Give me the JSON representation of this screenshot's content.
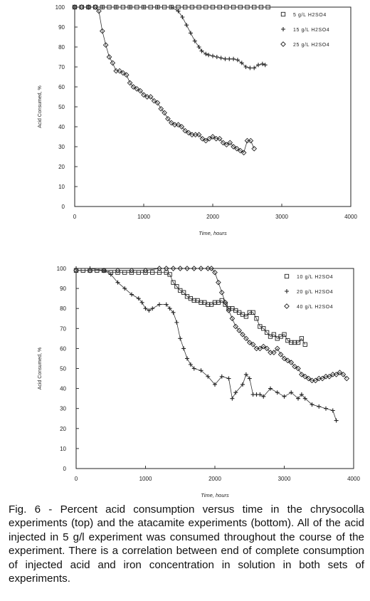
{
  "chart_data": [
    {
      "type": "scatter",
      "xlabel": "Time, hours",
      "ylabel": "Acid Consumed, %",
      "xlim": [
        0,
        4000
      ],
      "ylim": [
        0,
        100
      ],
      "x_ticks": [
        "0",
        "1000",
        "2000",
        "3000",
        "4000"
      ],
      "y_ticks": [
        "0",
        "10",
        "20",
        "30",
        "40",
        "50",
        "60",
        "70",
        "80",
        "90",
        "100"
      ],
      "legend_position": "top-right",
      "grid": false,
      "series": [
        {
          "name": "5 g/L H2SO4",
          "marker": "square",
          "x": [
            0,
            100,
            200,
            300,
            400,
            500,
            600,
            700,
            800,
            900,
            1000,
            1100,
            1200,
            1300,
            1400,
            1500,
            1600,
            1700,
            1800,
            1900,
            2000,
            2100,
            2200,
            2300,
            2400,
            2500,
            2600,
            2700,
            2800
          ],
          "y": [
            100,
            100,
            100,
            100,
            100,
            100,
            100,
            100,
            100,
            100,
            100,
            100,
            100,
            100,
            100,
            100,
            100,
            100,
            100,
            100,
            100,
            100,
            100,
            100,
            100,
            100,
            100,
            100,
            100
          ]
        },
        {
          "name": "15 g/L H2SO4",
          "marker": "plus",
          "x": [
            0,
            200,
            400,
            600,
            800,
            1000,
            1200,
            1400,
            1500,
            1560,
            1620,
            1680,
            1740,
            1800,
            1840,
            1900,
            1940,
            2000,
            2060,
            2120,
            2180,
            2240,
            2300,
            2360,
            2420,
            2480,
            2540,
            2600,
            2660,
            2720,
            2760
          ],
          "y": [
            100,
            100,
            100,
            100,
            100,
            100,
            100,
            100,
            98,
            95,
            91,
            87,
            83,
            80,
            78,
            76.5,
            76,
            75.5,
            75,
            74.5,
            74,
            74,
            74,
            73.5,
            72,
            70,
            69.5,
            69.5,
            71,
            71.5,
            71
          ]
        },
        {
          "name": "25 g/L H2SO4",
          "marker": "diamond",
          "x": [
            0,
            100,
            200,
            300,
            350,
            400,
            450,
            500,
            550,
            600,
            650,
            700,
            750,
            800,
            850,
            900,
            950,
            1000,
            1050,
            1100,
            1150,
            1200,
            1250,
            1300,
            1350,
            1400,
            1450,
            1500,
            1550,
            1600,
            1650,
            1700,
            1750,
            1800,
            1850,
            1900,
            1950,
            2000,
            2050,
            2100,
            2150,
            2200,
            2250,
            2300,
            2350,
            2400,
            2450,
            2500,
            2550,
            2600
          ],
          "y": [
            100,
            100,
            100,
            100,
            98,
            88,
            81,
            75,
            72,
            68,
            68,
            67,
            66,
            62,
            60,
            59,
            58,
            56,
            55,
            55,
            53,
            52,
            49,
            47,
            44,
            42,
            41,
            41,
            40,
            38,
            37,
            36,
            36,
            36,
            34,
            33,
            34,
            35,
            34,
            34,
            32,
            31,
            32,
            30,
            29,
            28,
            27,
            33,
            33,
            29
          ]
        }
      ]
    },
    {
      "type": "scatter",
      "xlabel": "Time, hours",
      "ylabel": "Acid Consumed, %",
      "xlim": [
        0,
        4000
      ],
      "ylim": [
        0,
        100
      ],
      "x_ticks": [
        "0",
        "1000",
        "2000",
        "3000",
        "4000"
      ],
      "y_ticks": [
        "0",
        "10",
        "20",
        "30",
        "40",
        "50",
        "60",
        "70",
        "80",
        "90",
        "100"
      ],
      "legend_position": "top-right",
      "grid": false,
      "series": [
        {
          "name": "10 g/L H2SO4",
          "marker": "square",
          "x": [
            0,
            100,
            200,
            300,
            400,
            500,
            600,
            700,
            800,
            900,
            1000,
            1100,
            1200,
            1300,
            1350,
            1400,
            1450,
            1500,
            1550,
            1600,
            1650,
            1700,
            1750,
            1800,
            1850,
            1900,
            1950,
            2000,
            2050,
            2100,
            2150,
            2200,
            2250,
            2300,
            2350,
            2400,
            2450,
            2500,
            2550,
            2600,
            2650,
            2700,
            2750,
            2800,
            2850,
            2900,
            2950,
            3000,
            3050,
            3100,
            3150,
            3200,
            3250,
            3300
          ],
          "y": [
            99,
            99,
            99,
            99,
            99,
            98,
            98,
            98,
            98,
            98,
            98,
            98,
            98,
            98,
            97,
            93,
            91,
            89,
            88,
            86,
            85,
            84,
            84,
            83,
            83,
            82,
            82,
            83,
            83,
            84,
            82,
            80,
            80,
            79,
            78,
            77,
            76,
            78,
            78,
            75,
            71,
            70,
            68,
            66,
            67,
            65,
            66,
            67,
            64,
            63,
            63,
            63,
            65,
            62
          ]
        },
        {
          "name": "20 g/L H2SO4",
          "marker": "plus",
          "x": [
            0,
            200,
            400,
            500,
            600,
            700,
            800,
            900,
            950,
            1000,
            1050,
            1100,
            1200,
            1300,
            1350,
            1400,
            1450,
            1500,
            1550,
            1600,
            1650,
            1700,
            1800,
            1900,
            2000,
            2100,
            2200,
            2250,
            2300,
            2400,
            2450,
            2500,
            2550,
            2600,
            2650,
            2700,
            2800,
            2900,
            3000,
            3100,
            3200,
            3250,
            3300,
            3400,
            3500,
            3600,
            3700,
            3750
          ],
          "y": [
            100,
            100,
            99,
            97,
            93,
            90,
            87,
            85,
            83,
            80,
            79,
            80,
            82,
            82,
            80,
            78,
            73,
            65,
            60,
            55,
            52,
            50,
            49,
            46,
            42,
            46,
            45,
            35,
            38,
            42,
            47,
            45,
            37,
            37,
            37,
            36,
            40,
            38,
            36,
            38,
            35,
            37,
            35,
            32,
            31,
            30,
            29,
            24
          ]
        },
        {
          "name": "40 g/L H2SO4",
          "marker": "diamond",
          "x": [
            0,
            200,
            400,
            600,
            800,
            1000,
            1200,
            1300,
            1400,
            1500,
            1600,
            1700,
            1800,
            1900,
            1950,
            2000,
            2050,
            2100,
            2150,
            2200,
            2250,
            2300,
            2350,
            2400,
            2450,
            2500,
            2550,
            2600,
            2650,
            2700,
            2750,
            2800,
            2850,
            2900,
            2950,
            3000,
            3050,
            3100,
            3150,
            3200,
            3250,
            3300,
            3350,
            3400,
            3450,
            3500,
            3550,
            3600,
            3650,
            3700,
            3750,
            3800,
            3850,
            3900
          ],
          "y": [
            99,
            99,
            99,
            99,
            99,
            99,
            100,
            100,
            100,
            100,
            100,
            100,
            100,
            100,
            100,
            98,
            93,
            88,
            83,
            79,
            75,
            71,
            69,
            67,
            65,
            63,
            62,
            60,
            60,
            61,
            60,
            58,
            58,
            60,
            57,
            55,
            54,
            53,
            51,
            50,
            47,
            46,
            45,
            44,
            44,
            45,
            45,
            46,
            46,
            47,
            47,
            48,
            47,
            45
          ]
        }
      ]
    }
  ],
  "caption": {
    "text": "Fig. 6 - Percent acid consumption versus time in the chrysocolla experiments (top) and the atacamite experiments (bottom). All of the acid injected in 5 g/l experiment was consumed throughout the course of the experiment. There is a correlation between end of complete consumption of injected acid and iron concentration in solution in both sets of experiments."
  }
}
